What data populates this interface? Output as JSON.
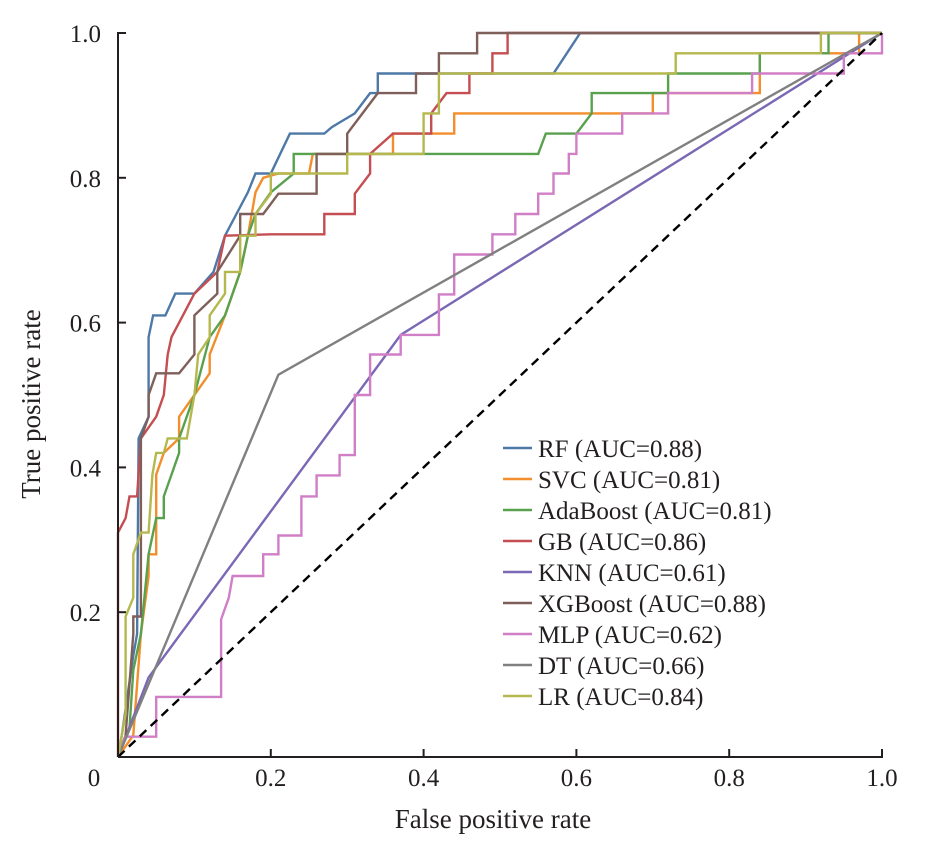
{
  "chart_data": {
    "type": "line",
    "title": "",
    "xlabel": "False positive rate",
    "ylabel": "True positive rate",
    "xlim": [
      0,
      1
    ],
    "ylim": [
      0,
      1
    ],
    "xticks": [
      0,
      0.2,
      0.4,
      0.6,
      0.8,
      1.0
    ],
    "xtick_labels": [
      "0",
      "0.2",
      "0.4",
      "0.6",
      "0.8",
      "1.0"
    ],
    "yticks": [
      0.2,
      0.4,
      0.6,
      0.8,
      1.0
    ],
    "ytick_labels": [
      "0.2",
      "0.4",
      "0.6",
      "0.8",
      "1.0"
    ],
    "grid": false,
    "legend_position": "bottom-right",
    "reference_line": {
      "name": "chance",
      "style": "dashed",
      "color": "#000000",
      "points": [
        [
          0,
          0
        ],
        [
          1,
          1
        ]
      ]
    },
    "series": [
      {
        "name": "RF (AUC=0.88)",
        "color": "#4e79a7",
        "points": [
          [
            0,
            0
          ],
          [
            0.005,
            0.03
          ],
          [
            0.02,
            0.14
          ],
          [
            0.025,
            0.17
          ],
          [
            0.027,
            0.44
          ],
          [
            0.04,
            0.47
          ],
          [
            0.04,
            0.58
          ],
          [
            0.046,
            0.61
          ],
          [
            0.062,
            0.61
          ],
          [
            0.075,
            0.64
          ],
          [
            0.1,
            0.64
          ],
          [
            0.125,
            0.67
          ],
          [
            0.14,
            0.72
          ],
          [
            0.17,
            0.78
          ],
          [
            0.18,
            0.806
          ],
          [
            0.2,
            0.806
          ],
          [
            0.225,
            0.861
          ],
          [
            0.27,
            0.861
          ],
          [
            0.28,
            0.87
          ],
          [
            0.31,
            0.889
          ],
          [
            0.33,
            0.917
          ],
          [
            0.34,
            0.917
          ],
          [
            0.34,
            0.944
          ],
          [
            0.4,
            0.944
          ],
          [
            0.57,
            0.944
          ],
          [
            0.605,
            1.0
          ],
          [
            1,
            1
          ]
        ]
      },
      {
        "name": "SVC (AUC=0.81)",
        "color": "#f28e2b",
        "points": [
          [
            0,
            0
          ],
          [
            0.02,
            0.03
          ],
          [
            0.03,
            0.17
          ],
          [
            0.04,
            0.25
          ],
          [
            0.04,
            0.28
          ],
          [
            0.05,
            0.28
          ],
          [
            0.05,
            0.39
          ],
          [
            0.06,
            0.42
          ],
          [
            0.08,
            0.44
          ],
          [
            0.08,
            0.47
          ],
          [
            0.1,
            0.5
          ],
          [
            0.12,
            0.53
          ],
          [
            0.12,
            0.556
          ],
          [
            0.14,
            0.61
          ],
          [
            0.16,
            0.67
          ],
          [
            0.17,
            0.72
          ],
          [
            0.18,
            0.78
          ],
          [
            0.19,
            0.8
          ],
          [
            0.21,
            0.806
          ],
          [
            0.25,
            0.806
          ],
          [
            0.255,
            0.833
          ],
          [
            0.36,
            0.833
          ],
          [
            0.36,
            0.861
          ],
          [
            0.44,
            0.861
          ],
          [
            0.44,
            0.889
          ],
          [
            0.7,
            0.889
          ],
          [
            0.7,
            0.917
          ],
          [
            0.84,
            0.917
          ],
          [
            0.84,
            0.972
          ],
          [
            0.97,
            0.972
          ],
          [
            0.97,
            1
          ],
          [
            1,
            1
          ]
        ]
      },
      {
        "name": "AdaBoost (AUC=0.81)",
        "color": "#59a14f",
        "points": [
          [
            0,
            0
          ],
          [
            0.015,
            0.04
          ],
          [
            0.02,
            0.12
          ],
          [
            0.03,
            0.17
          ],
          [
            0.04,
            0.28
          ],
          [
            0.05,
            0.33
          ],
          [
            0.06,
            0.33
          ],
          [
            0.06,
            0.36
          ],
          [
            0.07,
            0.39
          ],
          [
            0.08,
            0.42
          ],
          [
            0.08,
            0.44
          ],
          [
            0.1,
            0.5
          ],
          [
            0.12,
            0.58
          ],
          [
            0.14,
            0.61
          ],
          [
            0.16,
            0.67
          ],
          [
            0.17,
            0.72
          ],
          [
            0.18,
            0.75
          ],
          [
            0.2,
            0.78
          ],
          [
            0.23,
            0.806
          ],
          [
            0.23,
            0.833
          ],
          [
            0.55,
            0.833
          ],
          [
            0.56,
            0.861
          ],
          [
            0.6,
            0.861
          ],
          [
            0.62,
            0.889
          ],
          [
            0.62,
            0.917
          ],
          [
            0.72,
            0.917
          ],
          [
            0.72,
            0.944
          ],
          [
            0.84,
            0.944
          ],
          [
            0.84,
            0.972
          ],
          [
            0.93,
            0.972
          ],
          [
            0.93,
            1
          ],
          [
            1,
            1
          ]
        ]
      },
      {
        "name": "GB (AUC=0.86)",
        "color": "#c44e52",
        "points": [
          [
            0,
            0
          ],
          [
            0,
            0.31
          ],
          [
            0.01,
            0.33
          ],
          [
            0.015,
            0.36
          ],
          [
            0.025,
            0.36
          ],
          [
            0.03,
            0.44
          ],
          [
            0.05,
            0.47
          ],
          [
            0.06,
            0.5
          ],
          [
            0.065,
            0.556
          ],
          [
            0.07,
            0.58
          ],
          [
            0.085,
            0.61
          ],
          [
            0.1,
            0.64
          ],
          [
            0.13,
            0.67
          ],
          [
            0.14,
            0.72
          ],
          [
            0.2,
            0.722
          ],
          [
            0.27,
            0.722
          ],
          [
            0.27,
            0.75
          ],
          [
            0.31,
            0.75
          ],
          [
            0.31,
            0.778
          ],
          [
            0.33,
            0.806
          ],
          [
            0.33,
            0.833
          ],
          [
            0.36,
            0.861
          ],
          [
            0.41,
            0.861
          ],
          [
            0.41,
            0.889
          ],
          [
            0.43,
            0.917
          ],
          [
            0.46,
            0.917
          ],
          [
            0.46,
            0.944
          ],
          [
            0.49,
            0.944
          ],
          [
            0.49,
            0.972
          ],
          [
            0.51,
            0.972
          ],
          [
            0.51,
            1
          ],
          [
            1,
            1
          ]
        ]
      },
      {
        "name": "KNN (AUC=0.61)",
        "color": "#7b68b5",
        "points": [
          [
            0,
            0
          ],
          [
            0.04,
            0.11
          ],
          [
            0.37,
            0.583
          ],
          [
            1,
            1
          ]
        ]
      },
      {
        "name": "XGBoost (AUC=0.88)",
        "color": "#7f5f5a",
        "points": [
          [
            0,
            0
          ],
          [
            0.01,
            0.03
          ],
          [
            0.02,
            0.17
          ],
          [
            0.02,
            0.194
          ],
          [
            0.03,
            0.194
          ],
          [
            0.03,
            0.44
          ],
          [
            0.04,
            0.47
          ],
          [
            0.04,
            0.5
          ],
          [
            0.05,
            0.53
          ],
          [
            0.08,
            0.53
          ],
          [
            0.1,
            0.556
          ],
          [
            0.1,
            0.61
          ],
          [
            0.13,
            0.64
          ],
          [
            0.13,
            0.67
          ],
          [
            0.16,
            0.72
          ],
          [
            0.16,
            0.75
          ],
          [
            0.19,
            0.75
          ],
          [
            0.21,
            0.778
          ],
          [
            0.26,
            0.778
          ],
          [
            0.26,
            0.833
          ],
          [
            0.3,
            0.833
          ],
          [
            0.3,
            0.861
          ],
          [
            0.32,
            0.889
          ],
          [
            0.34,
            0.917
          ],
          [
            0.39,
            0.917
          ],
          [
            0.39,
            0.944
          ],
          [
            0.42,
            0.944
          ],
          [
            0.42,
            0.972
          ],
          [
            0.47,
            0.972
          ],
          [
            0.47,
            1
          ],
          [
            1,
            1
          ]
        ]
      },
      {
        "name": "MLP (AUC=0.62)",
        "color": "#d07fc6",
        "points": [
          [
            0,
            0
          ],
          [
            0.01,
            0.028
          ],
          [
            0.05,
            0.028
          ],
          [
            0.05,
            0.083
          ],
          [
            0.135,
            0.083
          ],
          [
            0.135,
            0.19
          ],
          [
            0.145,
            0.22
          ],
          [
            0.15,
            0.25
          ],
          [
            0.19,
            0.25
          ],
          [
            0.19,
            0.28
          ],
          [
            0.21,
            0.28
          ],
          [
            0.21,
            0.306
          ],
          [
            0.24,
            0.306
          ],
          [
            0.24,
            0.36
          ],
          [
            0.26,
            0.36
          ],
          [
            0.26,
            0.389
          ],
          [
            0.29,
            0.389
          ],
          [
            0.29,
            0.417
          ],
          [
            0.31,
            0.417
          ],
          [
            0.31,
            0.5
          ],
          [
            0.33,
            0.5
          ],
          [
            0.33,
            0.556
          ],
          [
            0.37,
            0.556
          ],
          [
            0.37,
            0.583
          ],
          [
            0.42,
            0.583
          ],
          [
            0.42,
            0.639
          ],
          [
            0.44,
            0.639
          ],
          [
            0.44,
            0.694
          ],
          [
            0.49,
            0.694
          ],
          [
            0.49,
            0.722
          ],
          [
            0.52,
            0.722
          ],
          [
            0.52,
            0.75
          ],
          [
            0.55,
            0.75
          ],
          [
            0.55,
            0.778
          ],
          [
            0.57,
            0.778
          ],
          [
            0.57,
            0.806
          ],
          [
            0.59,
            0.806
          ],
          [
            0.59,
            0.833
          ],
          [
            0.6,
            0.833
          ],
          [
            0.6,
            0.861
          ],
          [
            0.66,
            0.861
          ],
          [
            0.66,
            0.889
          ],
          [
            0.72,
            0.889
          ],
          [
            0.72,
            0.917
          ],
          [
            0.83,
            0.917
          ],
          [
            0.83,
            0.944
          ],
          [
            0.95,
            0.944
          ],
          [
            0.95,
            0.972
          ],
          [
            1,
            0.972
          ],
          [
            1,
            1
          ]
        ]
      },
      {
        "name": "DT (AUC=0.66)",
        "color": "#808080",
        "points": [
          [
            0,
            0
          ],
          [
            0.21,
            0.528
          ],
          [
            1,
            1
          ]
        ]
      },
      {
        "name": "LR (AUC=0.84)",
        "color": "#b5b84e",
        "points": [
          [
            0,
            0
          ],
          [
            0.005,
            0.03
          ],
          [
            0.01,
            0.06
          ],
          [
            0.01,
            0.194
          ],
          [
            0.02,
            0.22
          ],
          [
            0.02,
            0.28
          ],
          [
            0.03,
            0.31
          ],
          [
            0.04,
            0.31
          ],
          [
            0.045,
            0.39
          ],
          [
            0.05,
            0.42
          ],
          [
            0.06,
            0.42
          ],
          [
            0.065,
            0.44
          ],
          [
            0.09,
            0.44
          ],
          [
            0.1,
            0.5
          ],
          [
            0.105,
            0.556
          ],
          [
            0.12,
            0.58
          ],
          [
            0.12,
            0.61
          ],
          [
            0.14,
            0.64
          ],
          [
            0.14,
            0.67
          ],
          [
            0.16,
            0.67
          ],
          [
            0.16,
            0.72
          ],
          [
            0.18,
            0.72
          ],
          [
            0.18,
            0.75
          ],
          [
            0.2,
            0.778
          ],
          [
            0.2,
            0.806
          ],
          [
            0.3,
            0.806
          ],
          [
            0.3,
            0.833
          ],
          [
            0.4,
            0.833
          ],
          [
            0.4,
            0.889
          ],
          [
            0.42,
            0.889
          ],
          [
            0.42,
            0.944
          ],
          [
            0.73,
            0.944
          ],
          [
            0.73,
            0.972
          ],
          [
            0.92,
            0.972
          ],
          [
            0.92,
            1
          ],
          [
            1,
            1
          ]
        ]
      }
    ]
  }
}
